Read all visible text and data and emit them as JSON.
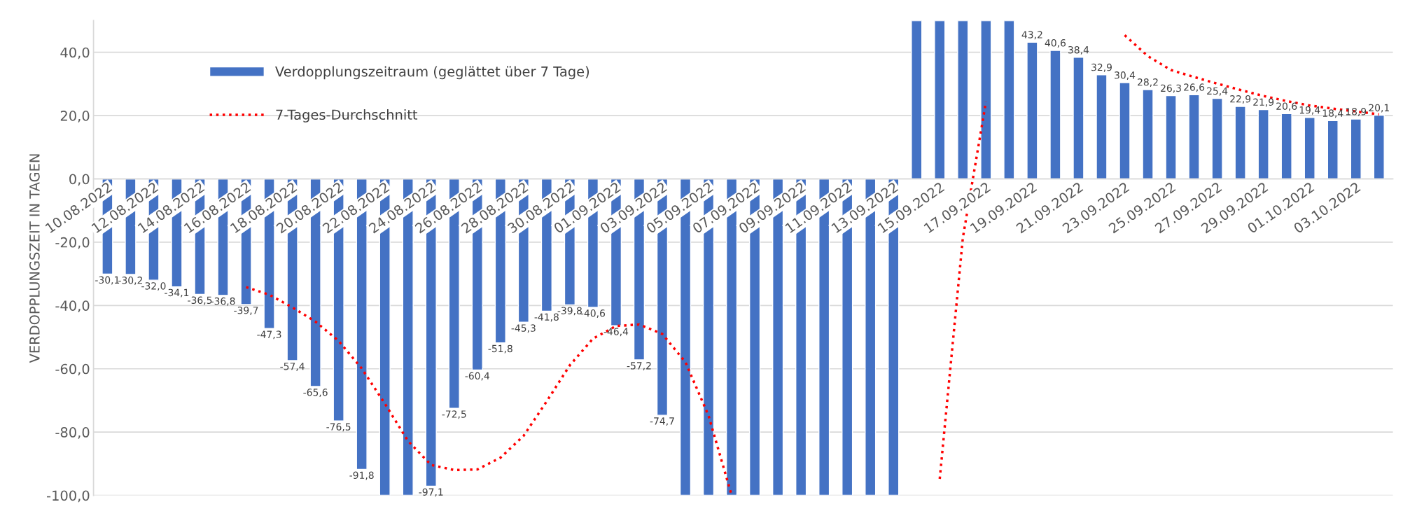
{
  "chart_data": {
    "type": "bar",
    "ylabel": "VERDOPPLUNGSZEIT IN TAGEN",
    "categories": [
      "10.08.2022",
      null,
      "12.08.2022",
      null,
      "14.08.2022",
      null,
      "16.08.2022",
      null,
      "18.08.2022",
      null,
      "20.08.2022",
      null,
      "22.08.2022",
      null,
      "24.08.2022",
      null,
      "26.08.2022",
      null,
      "28.08.2022",
      null,
      "30.08.2022",
      null,
      "01.09.2022",
      null,
      "03.09.2022",
      null,
      "05.09.2022",
      null,
      "07.09.2022",
      null,
      "09.09.2022",
      null,
      "11.09.2022",
      null,
      "13.09.2022",
      null,
      "15.09.2022",
      null,
      "17.09.2022",
      null,
      "19.09.2022",
      null,
      "21.09.2022",
      null,
      "23.09.2022",
      null,
      "25.09.2022",
      null,
      "27.09.2022",
      null,
      "29.09.2022",
      null,
      "01.10.2022",
      null,
      "03.10.2022",
      null
    ],
    "series": [
      {
        "name": "Verdopplungszeitraum (geglättet über 7 Tage)",
        "color": "#4472c4",
        "values": [
          -30.1,
          -30.2,
          -32.0,
          -34.1,
          -36.5,
          -36.8,
          -39.7,
          -47.3,
          -57.4,
          -65.6,
          -76.5,
          -91.8,
          -100,
          -100,
          -97.1,
          -72.5,
          -60.4,
          -51.8,
          -45.3,
          -41.8,
          -39.8,
          -40.6,
          -46.4,
          -57.2,
          -74.7,
          -100,
          -100,
          -100,
          -100,
          -100,
          -100,
          -100,
          -100,
          -100,
          -100,
          50,
          50,
          50,
          50,
          50,
          43.2,
          40.6,
          38.4,
          32.9,
          30.4,
          28.2,
          26.3,
          26.6,
          25.4,
          22.9,
          21.9,
          20.6,
          19.4,
          18.4,
          18.9,
          20.1
        ],
        "value_labels": [
          "-30,1",
          "-30,2",
          "-32,0",
          "-34,1",
          "-36,5",
          "-36,8",
          "-39,7",
          "-47,3",
          "-57,4",
          "-65,6",
          "-76,5",
          "-91,8",
          null,
          null,
          "-97,1",
          "-72,5",
          "-60,4",
          "-51,8",
          "-45,3",
          "-41,8",
          "-39,8",
          "-40,6",
          "-46,4",
          "-57,2",
          "-74,7",
          null,
          null,
          null,
          null,
          null,
          null,
          null,
          null,
          null,
          null,
          null,
          null,
          null,
          null,
          null,
          "43,2",
          "40,6",
          "38,4",
          "32,9",
          "30,4",
          "28,2",
          "26,3",
          "26,6",
          "25,4",
          "22,9",
          "21,9",
          "20,6",
          "19,4",
          "18,4",
          "18,9",
          "20,1"
        ]
      },
      {
        "name": "7-Tages-Durchschnitt",
        "type": "line",
        "color": "#ff0000",
        "line_style": "dotted",
        "values": [
          null,
          null,
          null,
          null,
          null,
          null,
          -34.2,
          -36.6,
          -40.6,
          -45.1,
          -51.2,
          -59.9,
          -71.0,
          -82.8,
          -90.4,
          -92.0,
          -91.8,
          -88.1,
          -81.2,
          -70.3,
          -58.9,
          -50.5,
          -46.5,
          -46.0,
          -49.0,
          -57.9,
          -74.8,
          -100,
          null,
          null,
          null,
          null,
          null,
          null,
          null,
          null,
          -94.8,
          -18.6,
          24.4,
          null,
          null,
          null,
          null,
          null,
          45.4,
          38.8,
          34.4,
          32.2,
          30.1,
          28.1,
          26.2,
          24.6,
          23.2,
          22.2,
          21.3,
          20.4
        ]
      }
    ],
    "ylim": [
      -100,
      50
    ],
    "yticks": [
      {
        "value": -100,
        "label": "-100,0"
      },
      {
        "value": -80,
        "label": "-80,0"
      },
      {
        "value": -60,
        "label": "-60,0"
      },
      {
        "value": -40,
        "label": "-40,0"
      },
      {
        "value": -20,
        "label": "-20,0"
      },
      {
        "value": 0,
        "label": "0,0"
      },
      {
        "value": 20,
        "label": "20,0"
      },
      {
        "value": 40,
        "label": "40,0"
      }
    ],
    "grid": "y",
    "legend": "top left"
  }
}
